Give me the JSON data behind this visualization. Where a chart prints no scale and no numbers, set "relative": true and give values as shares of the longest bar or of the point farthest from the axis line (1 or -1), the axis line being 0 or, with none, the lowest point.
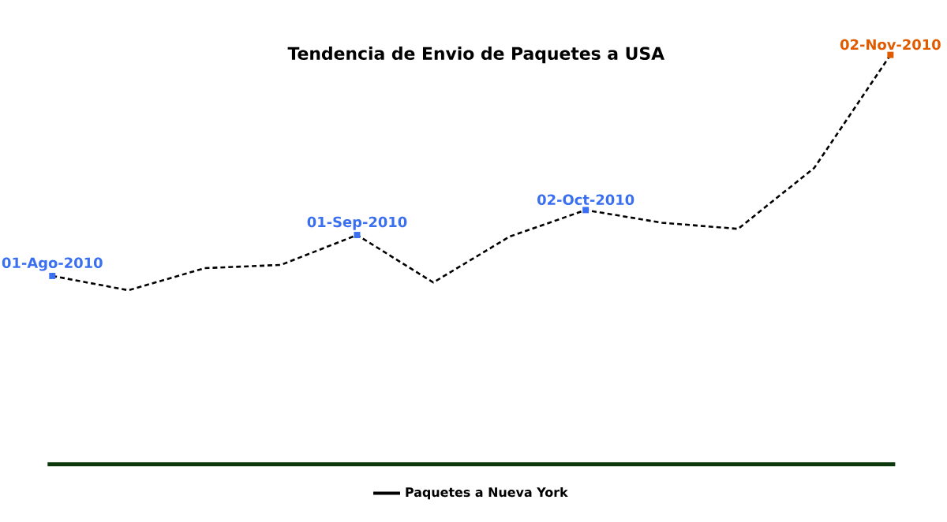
{
  "chart_data": {
    "type": "line",
    "title": "Tendencia de Envio de Paquetes a USA",
    "relative": true,
    "categories": [
      null,
      null,
      null,
      null,
      null,
      null,
      null,
      null,
      null,
      null,
      null,
      null
    ],
    "series": [
      {
        "name": "Paquetes a Nueva York",
        "color": "#000000",
        "line_style": "dashed",
        "values": [
          0.46,
          0.425,
          0.479,
          0.487,
          0.56,
          0.444,
          0.556,
          0.621,
          0.59,
          0.575,
          0.724,
          1
        ],
        "colors": [
          "#3a6ff0",
          null,
          null,
          null,
          "#3a6ff0",
          null,
          null,
          "#3a6ff0",
          null,
          null,
          null,
          "#e05a00"
        ]
      }
    ],
    "annotations": [
      {
        "text": "01-Ago-2010",
        "y": 0.46
      },
      {
        "text": "01-Sep-2010",
        "y": 0.56
      },
      {
        "text": "02-Oct-2010",
        "y": 0.621
      },
      {
        "text": "02-Nov-2010",
        "y": 1
      }
    ],
    "legend": "bottom"
  }
}
